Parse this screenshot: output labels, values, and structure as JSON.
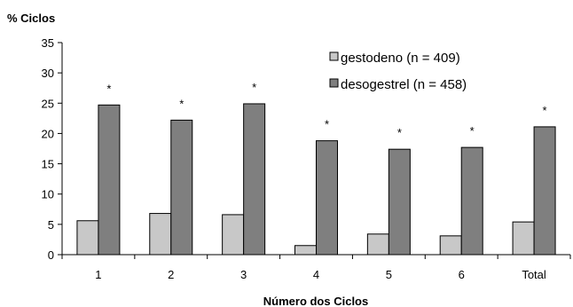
{
  "chart_data": {
    "type": "bar",
    "ylabel": "% Ciclos",
    "xlabel": "Número dos Ciclos",
    "categories": [
      "1",
      "2",
      "3",
      "4",
      "5",
      "6",
      "Total"
    ],
    "ylim": [
      0,
      35
    ],
    "yticks": [
      0,
      5,
      10,
      15,
      20,
      25,
      30,
      35
    ],
    "grid": false,
    "legend_position": "top-right",
    "series": [
      {
        "name": "gestodeno (n = 409)",
        "color": "#c8c8c8",
        "values": [
          5.6,
          6.8,
          6.6,
          1.5,
          3.4,
          3.1,
          5.4
        ]
      },
      {
        "name": "desogestrel (n = 458)",
        "color": "#7f7f7f",
        "values": [
          24.7,
          22.2,
          24.9,
          18.8,
          17.4,
          17.7,
          21.1
        ]
      }
    ],
    "annotations": [
      "*",
      "*",
      "*",
      "*",
      "*",
      "*",
      "*"
    ]
  }
}
